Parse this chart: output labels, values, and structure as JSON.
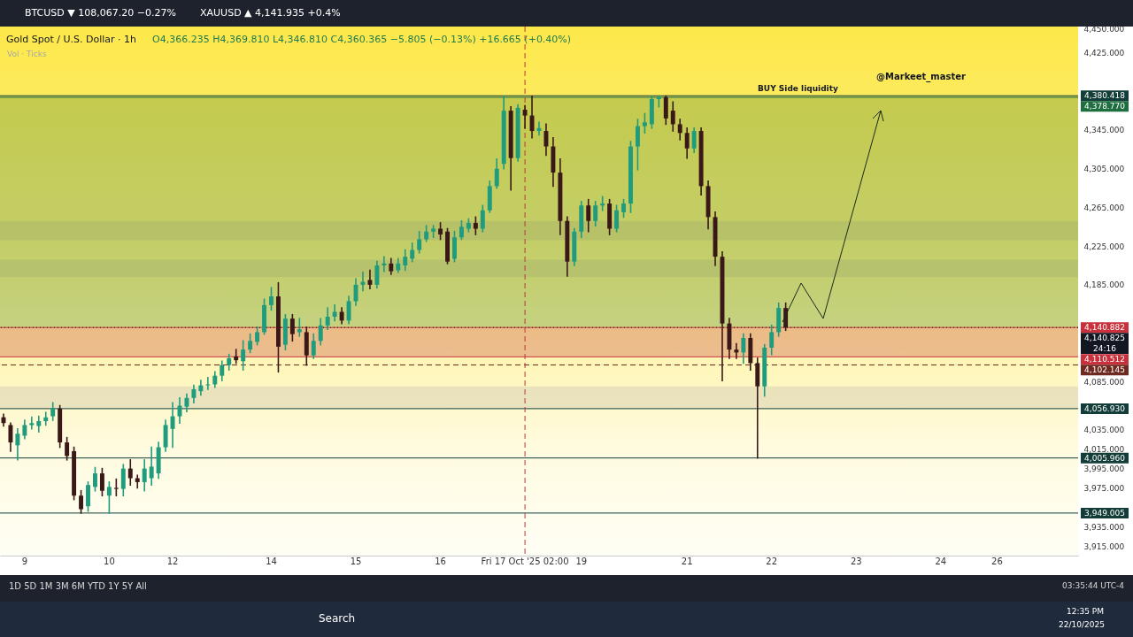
{
  "chart_data": {
    "type": "candlestick",
    "title": "Gold Spot / U.S. Dollar · 1h",
    "subtitle": "O4,366.235 H4,369.810 L4,346.810 C4,360.365 −5.805 (−0.13%) +16.665 (+0.40%)",
    "categories": [
      null,
      null,
      null,
      "9",
      null,
      null,
      null,
      null,
      null,
      null,
      null,
      null,
      null,
      null,
      null,
      "10",
      null,
      null,
      null,
      null,
      null,
      null,
      null,
      null,
      "12",
      null,
      null,
      null,
      null,
      null,
      null,
      null,
      null,
      null,
      null,
      null,
      null,
      null,
      "14",
      null,
      null,
      null,
      null,
      null,
      null,
      null,
      null,
      null,
      null,
      null,
      "15",
      null,
      null,
      null,
      null,
      null,
      null,
      null,
      null,
      null,
      null,
      null,
      "16",
      null,
      null,
      null,
      null,
      null,
      null,
      null,
      null,
      null,
      null,
      null,
      "Fri 17 Oct '25 02:00",
      null,
      null,
      null,
      null,
      null,
      null,
      null,
      "19",
      null,
      null,
      null,
      null,
      null,
      null,
      null,
      null,
      null,
      null,
      null,
      null,
      null,
      null,
      "21",
      null,
      null,
      null,
      null,
      null,
      null,
      null,
      null,
      null,
      null,
      null,
      "22",
      null,
      null,
      null,
      null,
      null,
      null,
      null,
      null,
      null,
      null,
      null,
      "23",
      null,
      null,
      null,
      null,
      null,
      null,
      null,
      null,
      null,
      null,
      null,
      "24",
      null,
      null,
      null,
      null,
      null,
      null,
      null,
      "26",
      null,
      null,
      null,
      null,
      null,
      null,
      null,
      null,
      null,
      null,
      null
    ],
    "ohlc": [
      [
        4048,
        4051,
        4039,
        4042
      ],
      [
        4040,
        4042,
        4013,
        4022
      ],
      [
        4019,
        4036,
        4004,
        4031
      ],
      [
        4029,
        4045,
        4026,
        4040
      ],
      [
        4040,
        4048,
        4036,
        4042
      ],
      [
        4039,
        4049,
        4033,
        4044
      ],
      [
        4044,
        4053,
        4040,
        4048
      ],
      [
        4049,
        4063,
        4045,
        4057
      ],
      [
        4057,
        4060,
        4017,
        4022
      ],
      [
        4022,
        4027,
        4004,
        4008
      ],
      [
        4013,
        4017,
        3963,
        3967
      ],
      [
        3967,
        3972,
        3949,
        3953
      ],
      [
        3956,
        3981,
        3951,
        3978
      ],
      [
        3976,
        3996,
        3972,
        3990
      ],
      [
        3990,
        3995,
        3967,
        3972
      ],
      [
        3967,
        3981,
        3949,
        3976
      ],
      [
        3975,
        3984,
        3967,
        3974
      ],
      [
        3974,
        3999,
        3967,
        3995
      ],
      [
        3995,
        4004,
        3978,
        3985
      ],
      [
        3985,
        3988,
        3975,
        3981
      ],
      [
        3981,
        4004,
        3972,
        3995
      ],
      [
        3985,
        4017,
        3978,
        3997
      ],
      [
        3990,
        4022,
        3985,
        4017
      ],
      [
        4017,
        4045,
        4013,
        4040
      ],
      [
        4036,
        4063,
        4017,
        4049
      ],
      [
        4049,
        4068,
        4042,
        4060
      ],
      [
        4059,
        4072,
        4054,
        4068
      ],
      [
        4068,
        4081,
        4063,
        4077
      ],
      [
        4075,
        4086,
        4071,
        4081
      ],
      [
        4081,
        4089,
        4077,
        4082
      ],
      [
        4082,
        4095,
        4079,
        4091
      ],
      [
        4091,
        4106,
        4086,
        4102
      ],
      [
        4102,
        4113,
        4097,
        4109
      ],
      [
        4111,
        4118,
        4104,
        4107
      ],
      [
        4106,
        4127,
        4097,
        4118
      ],
      [
        4118,
        4134,
        4115,
        4127
      ],
      [
        4126,
        4141,
        4123,
        4136
      ],
      [
        4136,
        4170,
        4134,
        4164
      ],
      [
        4164,
        4182,
        4159,
        4173
      ],
      [
        4173,
        4187,
        4095,
        4121
      ],
      [
        4123,
        4154,
        4118,
        4150
      ],
      [
        4150,
        4154,
        4127,
        4134
      ],
      [
        4136,
        4150,
        4132,
        4139
      ],
      [
        4136,
        4141,
        4102,
        4112
      ],
      [
        4112,
        4134,
        4109,
        4127
      ],
      [
        4127,
        4150,
        4123,
        4143
      ],
      [
        4143,
        4161,
        4139,
        4152
      ],
      [
        4152,
        4164,
        4148,
        4157
      ],
      [
        4157,
        4161,
        4145,
        4148
      ],
      [
        4148,
        4173,
        4145,
        4168
      ],
      [
        4168,
        4191,
        4164,
        4185
      ],
      [
        4185,
        4198,
        4179,
        4188
      ],
      [
        4190,
        4200,
        4181,
        4185
      ],
      [
        4185,
        4209,
        4182,
        4205
      ],
      [
        4205,
        4214,
        4199,
        4207
      ],
      [
        4207,
        4212,
        4196,
        4199
      ],
      [
        4200,
        4212,
        4198,
        4207
      ],
      [
        4205,
        4221,
        4200,
        4214
      ],
      [
        4212,
        4228,
        4209,
        4221
      ],
      [
        4221,
        4240,
        4218,
        4232
      ],
      [
        4232,
        4246,
        4230,
        4240
      ],
      [
        4240,
        4246,
        4234,
        4243
      ],
      [
        4243,
        4249,
        4232,
        4237
      ],
      [
        4240,
        4243,
        4207,
        4209
      ],
      [
        4212,
        4240,
        4209,
        4234
      ],
      [
        4234,
        4251,
        4232,
        4245
      ],
      [
        4243,
        4253,
        4240,
        4249
      ],
      [
        4249,
        4255,
        4237,
        4243
      ],
      [
        4243,
        4267,
        4240,
        4262
      ],
      [
        4262,
        4292,
        4260,
        4287
      ],
      [
        4287,
        4315,
        4285,
        4305
      ],
      [
        4310,
        4380,
        4305,
        4365
      ],
      [
        4365,
        4369,
        4283,
        4316
      ],
      [
        4316,
        4371,
        4313,
        4368
      ],
      [
        4366,
        4370,
        4347,
        4360
      ],
      [
        4360,
        4380,
        4337,
        4344
      ],
      [
        4344,
        4353,
        4340,
        4347
      ],
      [
        4344,
        4351,
        4319,
        4328
      ],
      [
        4328,
        4337,
        4287,
        4301
      ],
      [
        4301,
        4315,
        4237,
        4251
      ],
      [
        4251,
        4255,
        4194,
        4209
      ],
      [
        4209,
        4243,
        4205,
        4240
      ],
      [
        4240,
        4271,
        4234,
        4267
      ],
      [
        4267,
        4273,
        4240,
        4251
      ],
      [
        4251,
        4271,
        4246,
        4267
      ],
      [
        4267,
        4276,
        4262,
        4269
      ],
      [
        4269,
        4273,
        4237,
        4243
      ],
      [
        4243,
        4267,
        4240,
        4262
      ],
      [
        4260,
        4273,
        4255,
        4269
      ],
      [
        4269,
        4333,
        4260,
        4328
      ],
      [
        4328,
        4356,
        4304,
        4349
      ],
      [
        4349,
        4362,
        4342,
        4353
      ],
      [
        4351,
        4380,
        4347,
        4377
      ],
      [
        4377,
        4380,
        4369,
        4379
      ],
      [
        4379,
        4380,
        4351,
        4357
      ],
      [
        4365,
        4374,
        4344,
        4351
      ],
      [
        4351,
        4356,
        4335,
        4342
      ],
      [
        4342,
        4347,
        4316,
        4326
      ],
      [
        4326,
        4347,
        4322,
        4344
      ],
      [
        4344,
        4347,
        4278,
        4287
      ],
      [
        4287,
        4292,
        4243,
        4255
      ],
      [
        4255,
        4260,
        4205,
        4214
      ],
      [
        4214,
        4219,
        4086,
        4145
      ],
      [
        4145,
        4150,
        4109,
        4118
      ],
      [
        4118,
        4124,
        4109,
        4115
      ],
      [
        4115,
        4134,
        4104,
        4130
      ],
      [
        4130,
        4134,
        4097,
        4104
      ],
      [
        4104,
        4109,
        4006,
        4080
      ],
      [
        4080,
        4123,
        4070,
        4120
      ],
      [
        4120,
        4143,
        4113,
        4136
      ],
      [
        4136,
        4166,
        4132,
        4161
      ],
      [
        4161,
        4166,
        4138,
        4141
      ],
      null,
      null,
      null,
      null,
      null,
      null,
      null,
      null,
      null,
      null,
      null,
      null,
      null,
      null,
      null,
      null,
      null,
      null,
      null,
      null,
      null,
      null,
      null,
      null,
      null,
      null,
      null,
      null,
      null,
      null,
      null,
      null,
      null,
      null,
      null,
      null,
      null,
      null,
      null,
      null,
      null
    ],
    "ylim": [
      3905,
      4452
    ],
    "yticks": [
      {
        "value": 4450,
        "label": "4,450.000"
      },
      {
        "value": 4425,
        "label": "4,425.000"
      },
      {
        "value": 4345,
        "label": "4,345.000"
      },
      {
        "value": 4305,
        "label": "4,305.000"
      },
      {
        "value": 4265,
        "label": "4,265.000"
      },
      {
        "value": 4225,
        "label": "4,225.000"
      },
      {
        "value": 4185,
        "label": "4,185.000"
      },
      {
        "value": 4085,
        "label": "4,085.000"
      },
      {
        "value": 4035,
        "label": "4,035.000"
      },
      {
        "value": 4015,
        "label": "4,015.000"
      },
      {
        "value": 3995,
        "label": "3,995.000"
      },
      {
        "value": 3975,
        "label": "3,975.000"
      },
      {
        "value": 3935,
        "label": "3,935.000"
      },
      {
        "value": 3915,
        "label": "3,915.000"
      }
    ],
    "ref_lines": [
      {
        "axis": "y",
        "value": 4380.418,
        "label": "4,380.418",
        "color": "#123d38"
      },
      {
        "axis": "y",
        "value": 4378.77,
        "label": "4,378.770",
        "color": "#1e6e3f"
      },
      {
        "axis": "y",
        "value": 4140.882,
        "label": "4,140.882",
        "color": "#c8303c"
      },
      {
        "axis": "y",
        "value": 4140.825,
        "label": "4,140.825",
        "color": "#131722",
        "line_style": "dotted"
      },
      {
        "axis": "y",
        "value": 4110.512,
        "label": "4,110.512",
        "color": "#c8303c"
      },
      {
        "axis": "y",
        "value": 4102.145,
        "label": "4,102.145",
        "color": "#6e2a20",
        "line_style": "dashed"
      },
      {
        "axis": "y",
        "value": 4056.93,
        "label": "4,056.930",
        "color": "#123d38"
      },
      {
        "axis": "y",
        "value": 4005.96,
        "label": "4,005.960",
        "color": "#123d38"
      },
      {
        "axis": "y",
        "value": 3949.005,
        "label": "3,949.005",
        "color": "#123d38"
      },
      {
        "axis": "x",
        "value": "Fri 17 Oct '25 02:00",
        "color": "#b5393b",
        "line_style": "dashed"
      }
    ],
    "bands": [
      {
        "axis": "y",
        "from": 4057,
        "to": 4080,
        "color": "#bdb6a8"
      },
      {
        "axis": "y",
        "from": 4231,
        "to": 4251,
        "color": "#c2b488"
      },
      {
        "axis": "y",
        "from": 4193,
        "to": 4211,
        "color": "#c2b488"
      },
      {
        "axis": "y",
        "from": 4140.882,
        "to": 4378.77,
        "color": "#4f8a2e"
      },
      {
        "axis": "y",
        "from": 4110.512,
        "to": 4140.882,
        "color": "#c8463e"
      }
    ],
    "annotations": [
      "BTCUSD ▼ 108,067.20 −0.27%",
      "XAUUSD ▲ 4,141.935 +0.4%",
      "Vol · Ticks",
      "BUY Side liquidity",
      "@Markeet_master",
      "1D  5D  1M  3M  6M  YTD  1Y  5Y  All",
      "03:35:44 UTC-4",
      "Search",
      "12:35 PM",
      "22/10/2025",
      "24:16"
    ]
  }
}
